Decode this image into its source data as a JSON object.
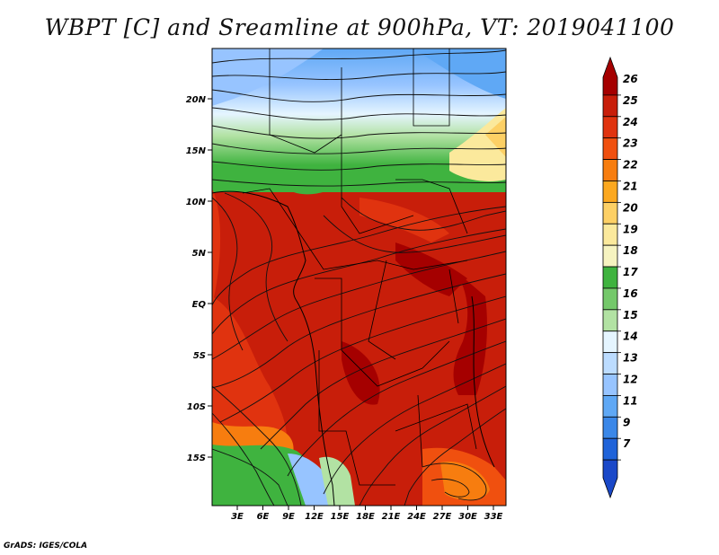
{
  "title": "WBPT [C] and Sreamline at 900hPa, VT: 2019041100",
  "footer": "GrADS: IGES/COLA",
  "map": {
    "lat_labels": [
      "20N",
      "15N",
      "10N",
      "5N",
      "EQ",
      "5S",
      "10S",
      "15S"
    ],
    "lon_labels": [
      "3E",
      "6E",
      "9E",
      "12E",
      "15E",
      "18E",
      "21E",
      "24E",
      "27E",
      "30E",
      "33E"
    ]
  },
  "colorbar": {
    "levels": [
      "26",
      "25",
      "24",
      "23",
      "22",
      "21",
      "20",
      "19",
      "18",
      "17",
      "16",
      "15",
      "14",
      "13",
      "12",
      "11",
      "9",
      "7"
    ],
    "colors": [
      "#a50000",
      "#c81e0a",
      "#e0330f",
      "#f0500f",
      "#f77d0f",
      "#fca81f",
      "#fdd065",
      "#fbe99c",
      "#f6f3c0",
      "#3fb33f",
      "#74c86a",
      "#b2e2a3",
      "#e5f5ff",
      "#bcdcff",
      "#97c4ff",
      "#5fa8f5",
      "#3a87e8",
      "#1f63d9",
      "#1a48c8"
    ]
  }
}
